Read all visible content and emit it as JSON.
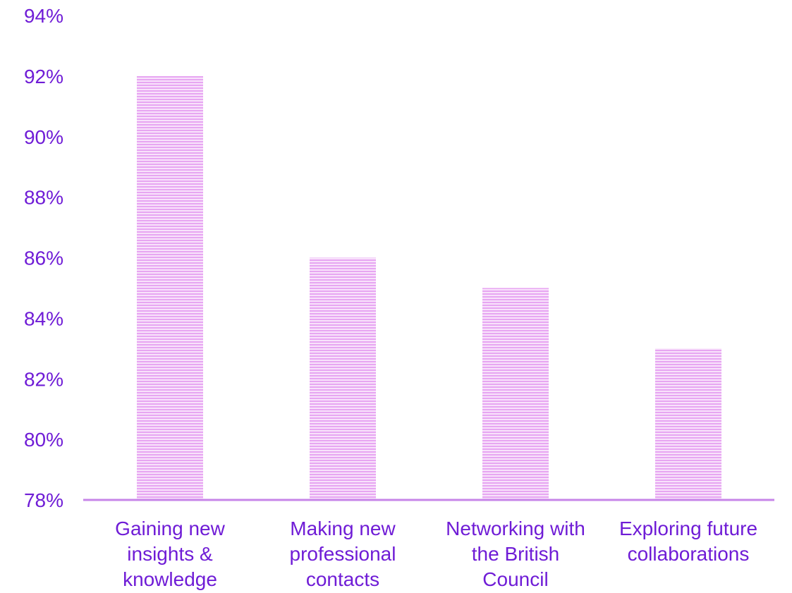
{
  "chart_data": {
    "type": "bar",
    "categories": [
      [
        "Gaining new",
        "insights &",
        "knowledge"
      ],
      [
        "Making new",
        "professional",
        "contacts"
      ],
      [
        "Networking with",
        "the British",
        "Council"
      ],
      [
        "Exploring future",
        "collaborations"
      ]
    ],
    "values": [
      92,
      86,
      85,
      83
    ],
    "ylim": [
      78,
      94
    ],
    "yticks": [
      78,
      80,
      82,
      84,
      86,
      88,
      90,
      92,
      94
    ],
    "ytick_labels": [
      "78%",
      "80%",
      "82%",
      "84%",
      "86%",
      "88%",
      "90%",
      "92%",
      "94%"
    ],
    "grid": false,
    "colors": {
      "bar": "#e7a6f2",
      "bar_stripe": "#f8e2fb",
      "axis": "#c785e8",
      "text": "#6f1cd6"
    }
  }
}
